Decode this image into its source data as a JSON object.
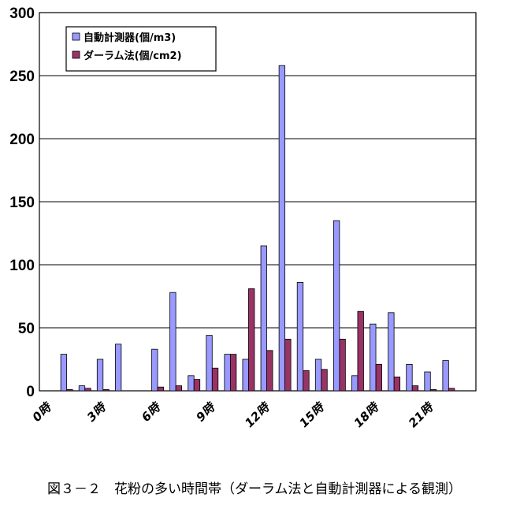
{
  "chart_data": {
    "type": "bar",
    "categories": [
      "0時",
      "1時",
      "2時",
      "3時",
      "4時",
      "5時",
      "6時",
      "7時",
      "8時",
      "9時",
      "10時",
      "11時",
      "12時",
      "13時",
      "14時",
      "15時",
      "16時",
      "17時",
      "18時",
      "19時",
      "20時",
      "21時",
      "22時",
      "23時"
    ],
    "x_tick_labels": [
      "0時",
      "3時",
      "6時",
      "9時",
      "12時",
      "15時",
      "18時",
      "21時"
    ],
    "series": [
      {
        "name": "自動計測器(個/m3)",
        "color": "#9999ff",
        "values": [
          0,
          29,
          4,
          25,
          37,
          0,
          33,
          78,
          12,
          44,
          29,
          25,
          115,
          258,
          86,
          25,
          135,
          12,
          53,
          62,
          21,
          15,
          24,
          0
        ]
      },
      {
        "name": "ダーラム法(個/cm2)",
        "color": "#993366",
        "values": [
          0,
          1,
          2,
          1,
          0,
          0,
          3,
          4,
          9,
          18,
          29,
          81,
          32,
          41,
          16,
          17,
          41,
          63,
          21,
          11,
          4,
          1,
          2,
          0
        ]
      }
    ],
    "ylim": [
      0,
      300
    ],
    "yticks": [
      "0",
      "50",
      "100",
      "150",
      "200",
      "250",
      "300"
    ],
    "grid": true,
    "legend_position": "top-left"
  },
  "caption": "図３－２　花粉の多い時間帯（ダーラム法と自動計測器による観測）"
}
